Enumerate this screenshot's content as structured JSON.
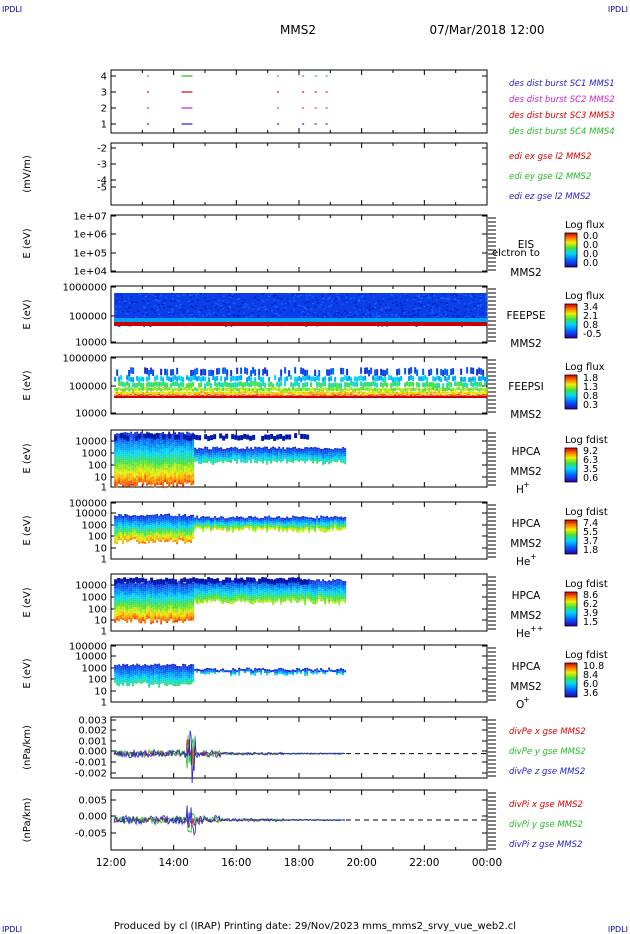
{
  "header": {
    "corner_left": "IPDLI",
    "corner_right": "IPDLI",
    "spacecraft": "MMS2",
    "datetime": "07/Mar/2018 12:00"
  },
  "footer": {
    "text": "Produced by cl (IRAP)   Printing date: 29/Nov/2023   mms_mms2_srvy_vue_web2.cl",
    "corner_left": "IPDLI",
    "corner_right": "IPDLI"
  },
  "chart_data": {
    "type": "multi-panel time series",
    "x": {
      "ticks": [
        "12:00",
        "14:00",
        "16:00",
        "18:00",
        "20:00",
        "22:00",
        "00:00"
      ],
      "range_hours": [
        12,
        24
      ]
    },
    "panels": [
      {
        "id": "burst",
        "type": "scatter",
        "ylabel": "",
        "yticks": [
          "4",
          "3",
          "2",
          "1"
        ],
        "legend": [
          {
            "text": "des dist burst SC1 MMS1",
            "color": "#2222cc"
          },
          {
            "text": "des dist burst SC2 MMS2",
            "color": "#cc22cc"
          },
          {
            "text": "des dist burst SC3 MMS3",
            "color": "#dd0000"
          },
          {
            "text": "des dist burst SC4 MMS4",
            "color": "#22bb22"
          }
        ],
        "series": [
          {
            "level": 4,
            "color": "#22bb22",
            "intervals": [
              [
                13.15,
                13.2
              ],
              [
                14.25,
                14.6
              ],
              [
                17.3,
                17.33
              ],
              [
                18.1,
                18.15
              ],
              [
                18.5,
                18.53
              ],
              [
                18.85,
                18.88
              ]
            ]
          },
          {
            "level": 3,
            "color": "#dd0000",
            "intervals": [
              [
                13.15,
                13.2
              ],
              [
                14.25,
                14.6
              ],
              [
                17.3,
                17.33
              ],
              [
                18.1,
                18.15
              ],
              [
                18.5,
                18.53
              ],
              [
                18.85,
                18.88
              ]
            ]
          },
          {
            "level": 2,
            "color": "#cc22cc",
            "intervals": [
              [
                13.15,
                13.2
              ],
              [
                14.25,
                14.6
              ],
              [
                17.3,
                17.33
              ],
              [
                18.1,
                18.15
              ],
              [
                18.5,
                18.53
              ],
              [
                18.85,
                18.88
              ]
            ]
          },
          {
            "level": 1,
            "color": "#2222cc",
            "intervals": [
              [
                13.15,
                13.2
              ],
              [
                14.25,
                14.6
              ],
              [
                17.3,
                17.33
              ],
              [
                18.1,
                18.15
              ],
              [
                18.5,
                18.53
              ],
              [
                18.85,
                18.88
              ]
            ]
          }
        ]
      },
      {
        "id": "edi",
        "type": "line",
        "ylabel": "(mV/m)",
        "yticks": [
          "-2",
          "-3",
          "-4",
          "-5"
        ],
        "legend": [
          {
            "text": "edi ex gse l2 MMS2",
            "color": "#dd0000"
          },
          {
            "text": "edi ey gse l2 MMS2",
            "color": "#22bb22"
          },
          {
            "text": "edi ez gse l2 MMS2",
            "color": "#2222cc"
          }
        ]
      },
      {
        "id": "eis",
        "type": "heatmap",
        "ylabel": "E (eV)",
        "yticks": [
          "1e+07",
          "1e+06",
          "1e+05",
          "1e+04"
        ],
        "instrument": [
          "EIS",
          "MMS2"
        ],
        "overlay": "elctron to",
        "colorbar": {
          "title": "Log flux",
          "ticks": [
            "0.0",
            "0.0",
            "0.0",
            "0.0"
          ]
        }
      },
      {
        "id": "feepse",
        "type": "heatmap",
        "ylabel": "E (eV)",
        "yticks": [
          "1000000",
          "100000",
          "10000"
        ],
        "instrument": [
          "FEEPSE",
          "MMS2"
        ],
        "colorbar": {
          "title": "Log flux",
          "ticks": [
            "3.4",
            "2.1",
            "0.8",
            "-0.5"
          ]
        },
        "x_range": [
          12.1,
          24
        ]
      },
      {
        "id": "feepsi",
        "type": "heatmap",
        "ylabel": "E (eV)",
        "yticks": [
          "1000000",
          "100000",
          "10000"
        ],
        "instrument": [
          "FEEPSI",
          "MMS2"
        ],
        "colorbar": {
          "title": "Log flux",
          "ticks": [
            "1.8",
            "1.3",
            "0.8",
            "0.3"
          ]
        },
        "x_range": [
          12.1,
          24
        ]
      },
      {
        "id": "hpca_h",
        "type": "heatmap",
        "ylabel": "E (eV)",
        "yticks": [
          "10000",
          "1000",
          "100",
          "10",
          "1"
        ],
        "instrument": [
          "HPCA",
          "MMS2"
        ],
        "species": "H",
        "species_sup": "+",
        "colorbar": {
          "title": "Log fdist",
          "ticks": [
            "9.2",
            "6.3",
            "3.5",
            "0.6"
          ]
        },
        "x_range": [
          12.1,
          19.5
        ]
      },
      {
        "id": "hpca_he",
        "type": "heatmap",
        "ylabel": "E (eV)",
        "yticks": [
          "100000",
          "10000",
          "1000",
          "100",
          "10",
          "1"
        ],
        "instrument": [
          "HPCA",
          "MMS2"
        ],
        "species": "He",
        "species_sup": "+",
        "colorbar": {
          "title": "Log fdist",
          "ticks": [
            "7.4",
            "5.5",
            "3.7",
            "1.8"
          ]
        },
        "x_range": [
          12.1,
          19.5
        ]
      },
      {
        "id": "hpca_hepp",
        "type": "heatmap",
        "ylabel": "E (eV)",
        "yticks": [
          "10000",
          "1000",
          "100",
          "10",
          "1"
        ],
        "instrument": [
          "HPCA",
          "MMS2"
        ],
        "species": "He",
        "species_sup": "++",
        "colorbar": {
          "title": "Log fdist",
          "ticks": [
            "8.6",
            "6.2",
            "3.9",
            "1.5"
          ]
        },
        "x_range": [
          12.1,
          19.5
        ]
      },
      {
        "id": "hpca_o",
        "type": "heatmap",
        "ylabel": "E (eV)",
        "yticks": [
          "100000",
          "10000",
          "1000",
          "100",
          "10",
          "1"
        ],
        "instrument": [
          "HPCA",
          "MMS2"
        ],
        "species": "O",
        "species_sup": "+",
        "colorbar": {
          "title": "Log fdist",
          "ticks": [
            "10.8",
            "8.4",
            "6.0",
            "3.6"
          ]
        },
        "x_range": [
          12.1,
          19.5
        ]
      },
      {
        "id": "divpe",
        "type": "line",
        "ylabel": "(nPa/km)",
        "yticks": [
          "0.003",
          "0.002",
          "0.001",
          "0.000",
          "-0.001",
          "-0.002"
        ],
        "ylim": [
          -0.002,
          0.003
        ],
        "legend": [
          {
            "text": "divPe x gse MMS2",
            "color": "#dd0000"
          },
          {
            "text": "divPe y gse MMS2",
            "color": "#22bb22"
          },
          {
            "text": "divPe z gse MMS2",
            "color": "#2222cc"
          }
        ],
        "x_range": [
          12.1,
          19.5
        ],
        "zero_line": true
      },
      {
        "id": "divpi",
        "type": "line",
        "ylabel": "(nPa/km)",
        "yticks": [
          "0.005",
          "0.000",
          "-0.005"
        ],
        "ylim": [
          -0.008,
          0.008
        ],
        "legend": [
          {
            "text": "divPi x gse MMS2",
            "color": "#dd0000"
          },
          {
            "text": "divPi y gse MMS2",
            "color": "#22bb22"
          },
          {
            "text": "divPi z gse MMS2",
            "color": "#2222cc"
          }
        ],
        "x_range": [
          12.1,
          19.5
        ],
        "zero_line": true
      }
    ]
  }
}
